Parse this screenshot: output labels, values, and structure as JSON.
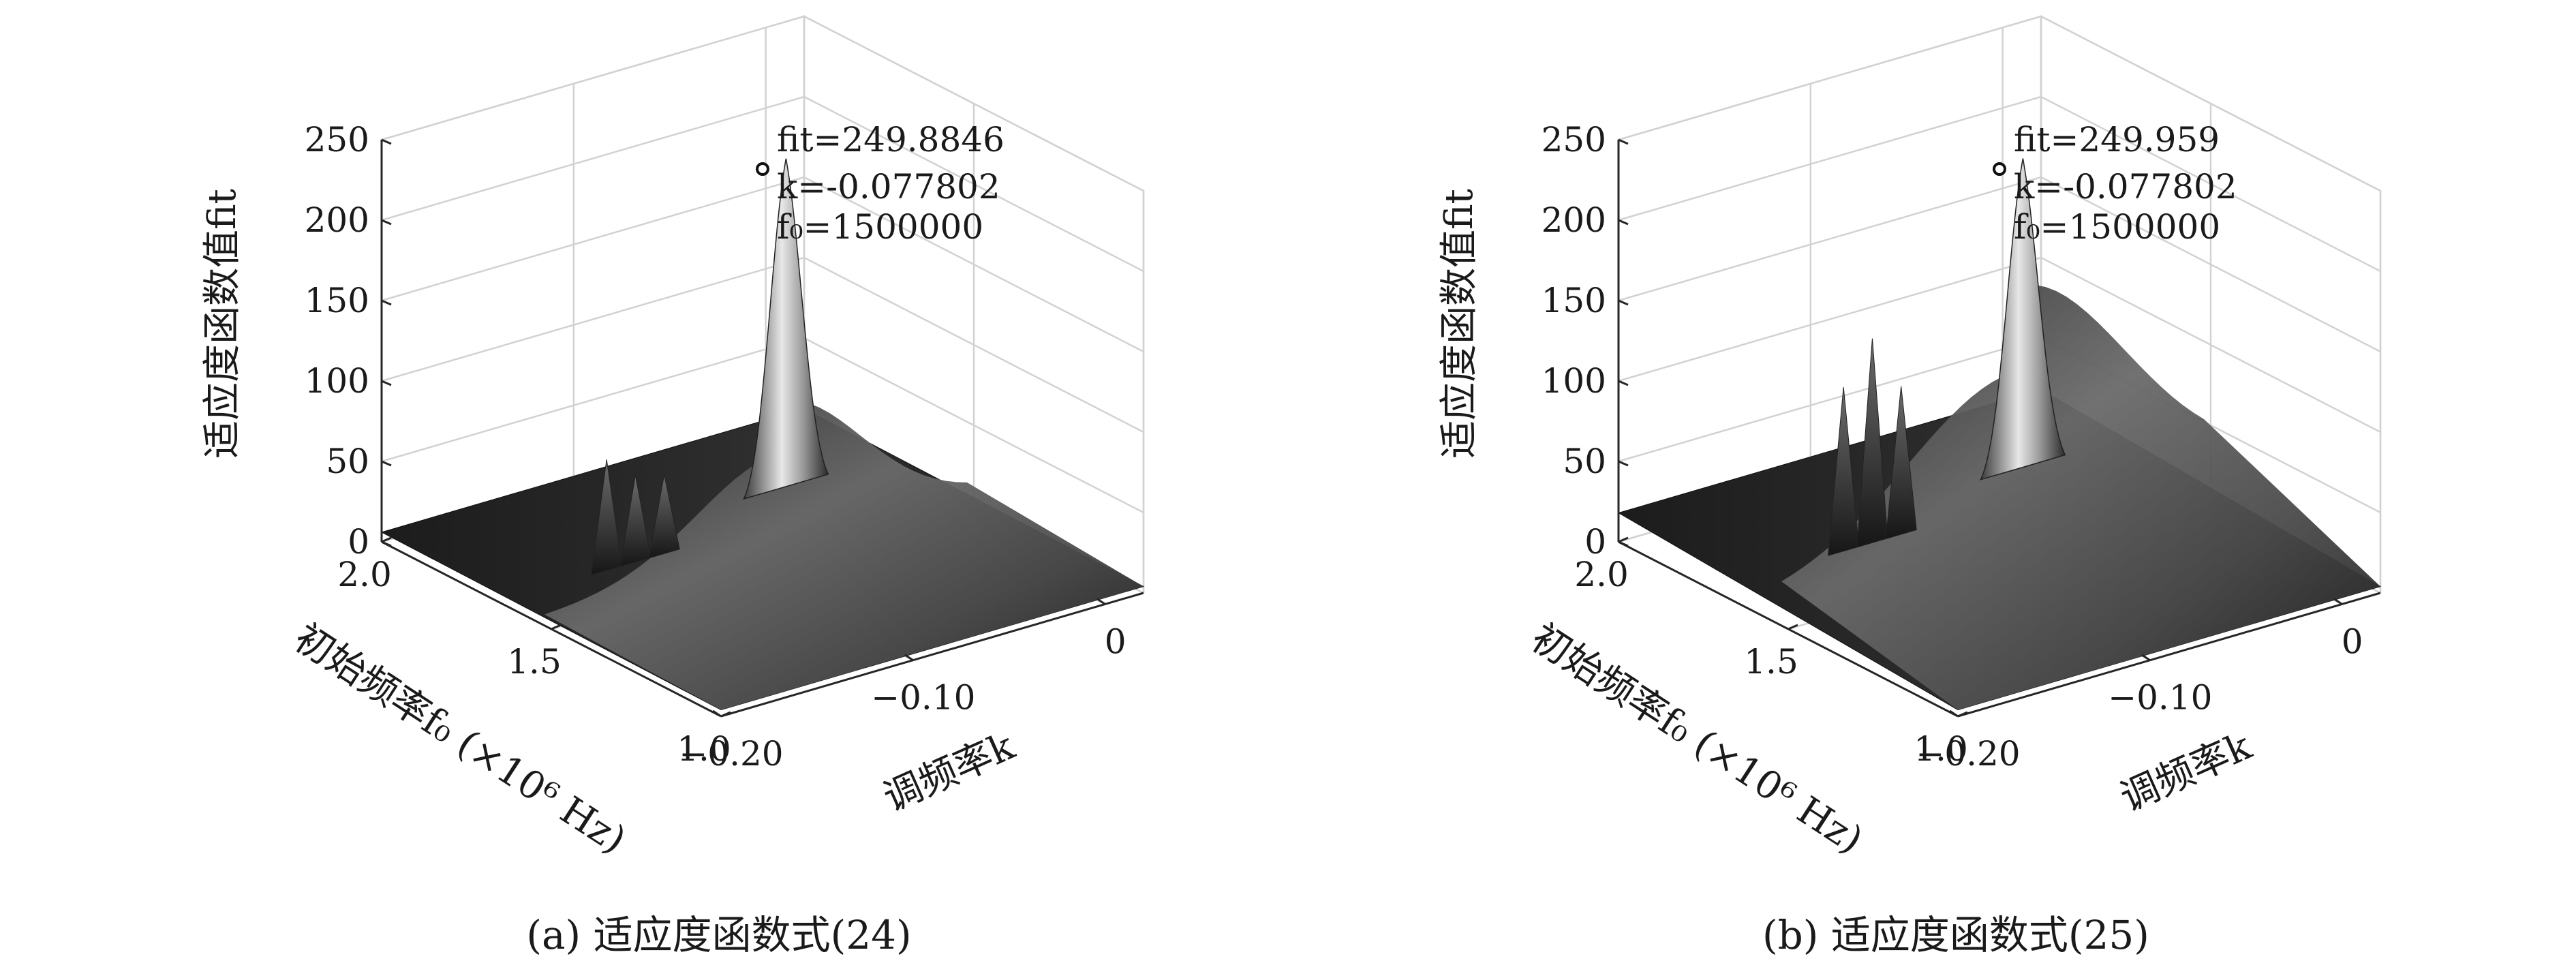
{
  "chart_data": [
    {
      "type": "surface",
      "caption": "(a) 适应度函数式(24)",
      "zlabel": "适应度函数值fit",
      "xlabel": "调频率k",
      "ylabel": "初始频率f₀ (×10⁶ Hz)",
      "x_ticks": [
        "-0.20",
        "-0.10",
        "0"
      ],
      "y_ticks": [
        "1.0",
        "1.5",
        "2.0"
      ],
      "z_ticks": [
        "0",
        "50",
        "100",
        "150",
        "200",
        "250"
      ],
      "xlim": [
        -0.2,
        0.02
      ],
      "ylim": [
        1.0,
        2.0
      ],
      "zlim": [
        0,
        250
      ],
      "grid": true,
      "peak": {
        "k": -0.077802,
        "f0": 1500000,
        "fit": 249.8846
      },
      "annotation_lines": [
        "fit=249.8846",
        "k=-0.077802",
        "f₀=1500000"
      ],
      "colormap": "gray"
    },
    {
      "type": "surface",
      "caption": "(b) 适应度函数式(25)",
      "zlabel": "适应度函数值fit",
      "xlabel": "调频率k",
      "ylabel": "初始频率f₀ (×10⁶ Hz)",
      "x_ticks": [
        "-0.20",
        "-0.10",
        "0"
      ],
      "y_ticks": [
        "1.0",
        "1.5",
        "2.0"
      ],
      "z_ticks": [
        "0",
        "50",
        "100",
        "150",
        "200",
        "250"
      ],
      "xlim": [
        -0.2,
        0.02
      ],
      "ylim": [
        1.0,
        2.0
      ],
      "zlim": [
        0,
        250
      ],
      "grid": true,
      "peak": {
        "k": -0.077802,
        "f0": 1500000,
        "fit": 249.959
      },
      "annotation_lines": [
        "fit=249.959",
        "k=-0.077802",
        "f₀=1500000"
      ],
      "colormap": "gray"
    }
  ]
}
